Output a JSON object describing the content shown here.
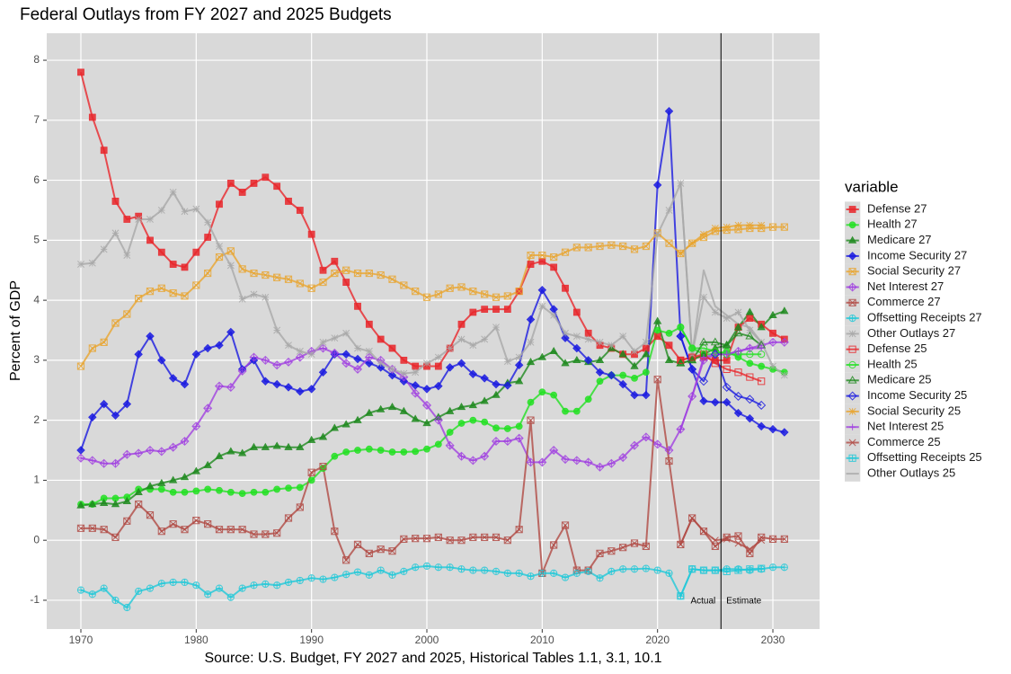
{
  "chart_data": {
    "type": "line",
    "title": "Federal Outlays from FY 2027 and 2025 Budgets",
    "x_label": "Source: U.S. Budget, FY 2027 and 2025, Historical Tables 1.1, 3.1, 10.1",
    "y_label": "Percent of GDP",
    "legend_title": "variable",
    "legend_position": "right",
    "grid": true,
    "xlim": [
      1967.04,
      2034.05
    ],
    "ylim": [
      -1.48,
      8.45
    ],
    "xticks": [
      1970,
      1980,
      1990,
      2000,
      2010,
      2020,
      2030
    ],
    "yticks": [
      -1,
      0,
      1,
      2,
      3,
      4,
      5,
      6,
      7,
      8
    ],
    "vline": 2025.5,
    "annotations": [
      "Actual",
      "Estimate"
    ],
    "x": [
      1970,
      1971,
      1972,
      1973,
      1974,
      1975,
      1976,
      1977,
      1978,
      1979,
      1980,
      1981,
      1982,
      1983,
      1984,
      1985,
      1986,
      1987,
      1988,
      1989,
      1990,
      1991,
      1992,
      1993,
      1994,
      1995,
      1996,
      1997,
      1998,
      1999,
      2000,
      2001,
      2002,
      2003,
      2004,
      2005,
      2006,
      2007,
      2008,
      2009,
      2010,
      2011,
      2012,
      2013,
      2014,
      2015,
      2016,
      2017,
      2018,
      2019,
      2020,
      2021,
      2022,
      2023,
      2024,
      2025,
      2026,
      2027,
      2028,
      2029,
      2030,
      2031
    ],
    "series": [
      {
        "name": "Defense 27",
        "color": "#e8262a",
        "shape": "square",
        "values": [
          7.8,
          7.05,
          6.5,
          5.65,
          5.35,
          5.4,
          5.0,
          4.8,
          4.6,
          4.55,
          4.8,
          5.05,
          5.6,
          5.95,
          5.8,
          5.95,
          6.05,
          5.9,
          5.65,
          5.5,
          5.1,
          4.5,
          4.65,
          4.3,
          3.9,
          3.6,
          3.35,
          3.2,
          3.0,
          2.9,
          2.9,
          2.9,
          3.2,
          3.6,
          3.8,
          3.85,
          3.85,
          3.85,
          4.15,
          4.6,
          4.65,
          4.55,
          4.2,
          3.8,
          3.45,
          3.25,
          3.2,
          3.1,
          3.1,
          3.2,
          3.4,
          3.25,
          3.0,
          3.05,
          3.05,
          3.0,
          3.0,
          3.55,
          3.7,
          3.6,
          3.45,
          3.35
        ]
      },
      {
        "name": "Health 27",
        "color": "#22e022",
        "shape": "circle",
        "values": [
          0.6,
          0.6,
          0.7,
          0.7,
          0.72,
          0.85,
          0.85,
          0.85,
          0.8,
          0.8,
          0.82,
          0.85,
          0.83,
          0.8,
          0.78,
          0.8,
          0.8,
          0.85,
          0.87,
          0.88,
          1.0,
          1.2,
          1.4,
          1.47,
          1.5,
          1.52,
          1.5,
          1.47,
          1.47,
          1.48,
          1.52,
          1.6,
          1.8,
          1.95,
          2.0,
          1.97,
          1.87,
          1.86,
          1.9,
          2.3,
          2.47,
          2.42,
          2.15,
          2.15,
          2.35,
          2.65,
          2.75,
          2.75,
          2.7,
          2.8,
          3.5,
          3.45,
          3.55,
          3.2,
          3.1,
          3.1,
          3.15,
          3.05,
          2.95,
          2.9,
          2.85,
          2.8
        ]
      },
      {
        "name": "Medicare 27",
        "color": "#1f8a1f",
        "shape": "triangle",
        "values": [
          0.58,
          0.6,
          0.62,
          0.6,
          0.65,
          0.8,
          0.9,
          0.95,
          1.0,
          1.05,
          1.15,
          1.25,
          1.4,
          1.48,
          1.45,
          1.55,
          1.55,
          1.57,
          1.55,
          1.55,
          1.67,
          1.72,
          1.87,
          1.93,
          2.0,
          2.12,
          2.18,
          2.22,
          2.15,
          2.02,
          1.95,
          2.05,
          2.15,
          2.22,
          2.25,
          2.32,
          2.42,
          2.62,
          2.65,
          2.97,
          3.05,
          3.15,
          2.95,
          3.0,
          2.97,
          3.0,
          3.2,
          3.1,
          2.9,
          3.1,
          3.65,
          3.0,
          2.95,
          3.0,
          3.1,
          3.2,
          3.25,
          3.55,
          3.8,
          3.55,
          3.75,
          3.82
        ]
      },
      {
        "name": "Income Security 27",
        "color": "#1a1ae0",
        "shape": "diamond",
        "values": [
          1.5,
          2.05,
          2.27,
          2.08,
          2.27,
          3.1,
          3.4,
          3.0,
          2.7,
          2.6,
          3.1,
          3.2,
          3.25,
          3.47,
          2.85,
          3.0,
          2.65,
          2.6,
          2.55,
          2.48,
          2.52,
          2.8,
          3.1,
          3.1,
          3.02,
          2.95,
          2.88,
          2.75,
          2.65,
          2.58,
          2.52,
          2.57,
          2.88,
          2.95,
          2.77,
          2.7,
          2.6,
          2.58,
          2.92,
          3.68,
          4.17,
          3.85,
          3.37,
          3.2,
          3.0,
          2.8,
          2.75,
          2.6,
          2.42,
          2.42,
          5.92,
          7.15,
          3.4,
          2.85,
          2.32,
          2.3,
          2.3,
          2.12,
          2.03,
          1.9,
          1.85,
          1.8
        ]
      },
      {
        "name": "Social Security 27",
        "color": "#e8a530",
        "shape": "square-x",
        "values": [
          2.9,
          3.2,
          3.3,
          3.62,
          3.77,
          4.03,
          4.15,
          4.2,
          4.12,
          4.07,
          4.25,
          4.45,
          4.72,
          4.82,
          4.52,
          4.45,
          4.42,
          4.38,
          4.35,
          4.28,
          4.2,
          4.3,
          4.45,
          4.5,
          4.45,
          4.45,
          4.42,
          4.35,
          4.25,
          4.15,
          4.05,
          4.1,
          4.2,
          4.22,
          4.15,
          4.1,
          4.05,
          4.07,
          4.15,
          4.75,
          4.75,
          4.72,
          4.8,
          4.88,
          4.88,
          4.9,
          4.92,
          4.9,
          4.85,
          4.9,
          5.12,
          4.95,
          4.78,
          4.95,
          5.05,
          5.15,
          5.17,
          5.18,
          5.2,
          5.2,
          5.22,
          5.22
        ]
      },
      {
        "name": "Net Interest 27",
        "color": "#a040e0",
        "shape": "diamond-plus",
        "values": [
          1.37,
          1.33,
          1.28,
          1.28,
          1.43,
          1.45,
          1.5,
          1.48,
          1.55,
          1.65,
          1.9,
          2.2,
          2.57,
          2.55,
          2.82,
          3.05,
          3.0,
          2.92,
          2.97,
          3.05,
          3.15,
          3.2,
          3.12,
          2.95,
          2.85,
          3.05,
          3.0,
          2.85,
          2.72,
          2.45,
          2.25,
          2.0,
          1.58,
          1.4,
          1.33,
          1.4,
          1.65,
          1.65,
          1.7,
          1.3,
          1.3,
          1.5,
          1.35,
          1.33,
          1.3,
          1.22,
          1.28,
          1.38,
          1.58,
          1.72,
          1.6,
          1.5,
          1.85,
          2.4,
          3.0,
          3.1,
          3.1,
          3.15,
          3.2,
          3.25,
          3.3,
          3.3
        ]
      },
      {
        "name": "Commerce 27",
        "color": "#b04a44",
        "shape": "square-x",
        "values": [
          0.2,
          0.2,
          0.18,
          0.05,
          0.32,
          0.6,
          0.42,
          0.15,
          0.27,
          0.18,
          0.33,
          0.27,
          0.18,
          0.18,
          0.18,
          0.1,
          0.1,
          0.12,
          0.37,
          0.55,
          1.13,
          1.23,
          0.15,
          -0.33,
          -0.07,
          -0.22,
          -0.15,
          -0.18,
          0.02,
          0.03,
          0.03,
          0.05,
          0.0,
          0.0,
          0.05,
          0.05,
          0.05,
          0.0,
          0.18,
          2.0,
          -0.55,
          -0.08,
          0.25,
          -0.5,
          -0.5,
          -0.22,
          -0.18,
          -0.12,
          -0.05,
          -0.1,
          2.68,
          1.32,
          -0.07,
          0.37,
          0.15,
          -0.1,
          0.05,
          0.07,
          -0.22,
          0.05,
          0.02,
          0.02
        ]
      },
      {
        "name": "Offsetting Receipts 27",
        "color": "#20c8d8",
        "shape": "circle-plus",
        "values": [
          -0.83,
          -0.9,
          -0.8,
          -1.0,
          -1.12,
          -0.85,
          -0.8,
          -0.72,
          -0.7,
          -0.7,
          -0.75,
          -0.9,
          -0.8,
          -0.95,
          -0.8,
          -0.75,
          -0.73,
          -0.75,
          -0.7,
          -0.67,
          -0.63,
          -0.65,
          -0.62,
          -0.57,
          -0.53,
          -0.58,
          -0.5,
          -0.58,
          -0.52,
          -0.45,
          -0.43,
          -0.45,
          -0.45,
          -0.48,
          -0.5,
          -0.5,
          -0.52,
          -0.55,
          -0.55,
          -0.6,
          -0.55,
          -0.55,
          -0.62,
          -0.55,
          -0.52,
          -0.63,
          -0.52,
          -0.48,
          -0.48,
          -0.47,
          -0.5,
          -0.55,
          -0.93,
          -0.48,
          -0.5,
          -0.5,
          -0.48,
          -0.48,
          -0.5,
          -0.48,
          -0.45,
          -0.45
        ]
      },
      {
        "name": "Other Outlays 27",
        "color": "#a8a8a8",
        "shape": "asterisk",
        "values": [
          4.6,
          4.62,
          4.85,
          5.12,
          4.75,
          5.35,
          5.35,
          5.5,
          5.8,
          5.48,
          5.52,
          5.3,
          4.9,
          4.58,
          4.02,
          4.1,
          4.05,
          3.5,
          3.25,
          3.15,
          3.1,
          3.3,
          3.37,
          3.45,
          3.2,
          3.15,
          2.95,
          2.85,
          2.78,
          2.8,
          2.95,
          3.05,
          3.2,
          3.35,
          3.25,
          3.35,
          3.55,
          2.98,
          3.05,
          3.3,
          3.9,
          3.75,
          3.45,
          3.4,
          3.35,
          3.3,
          3.25,
          3.4,
          3.15,
          3.3,
          5.1,
          5.5,
          5.95,
          3.1,
          4.05,
          3.8,
          3.7,
          3.8,
          3.5,
          3.3,
          2.9,
          2.75
        ]
      },
      {
        "name": "Defense 25",
        "color": "#e8262a",
        "shape": "open-square",
        "x": [
          2022,
          2023,
          2024,
          2025,
          2026,
          2027,
          2028,
          2029
        ],
        "values": [
          3.0,
          3.05,
          3.1,
          2.95,
          2.85,
          2.8,
          2.72,
          2.65
        ]
      },
      {
        "name": "Health 25",
        "color": "#22e022",
        "shape": "open-circle",
        "x": [
          2022,
          2023,
          2024,
          2025,
          2026,
          2027,
          2028,
          2029
        ],
        "values": [
          3.55,
          3.2,
          3.2,
          3.15,
          3.1,
          3.1,
          3.1,
          3.1
        ]
      },
      {
        "name": "Medicare 25",
        "color": "#1f8a1f",
        "shape": "open-triangle",
        "x": [
          2022,
          2023,
          2024,
          2025,
          2026,
          2027,
          2028,
          2029
        ],
        "values": [
          2.95,
          3.0,
          3.3,
          3.3,
          3.25,
          3.45,
          3.4,
          3.25
        ]
      },
      {
        "name": "Income Security 25",
        "color": "#1a1ae0",
        "shape": "open-diamond",
        "x": [
          2022,
          2023,
          2024,
          2025,
          2026,
          2027,
          2028,
          2029
        ],
        "values": [
          3.4,
          2.85,
          2.65,
          3.1,
          2.55,
          2.4,
          2.35,
          2.25
        ]
      },
      {
        "name": "Social Security 25",
        "color": "#e8a530",
        "shape": "asterisk",
        "x": [
          2022,
          2023,
          2024,
          2025,
          2026,
          2027,
          2028,
          2029
        ],
        "values": [
          4.78,
          4.95,
          5.1,
          5.2,
          5.22,
          5.25,
          5.25,
          5.25
        ]
      },
      {
        "name": "Net Interest 25",
        "color": "#a040e0",
        "shape": "plus",
        "x": [
          2022,
          2023,
          2024,
          2025,
          2026,
          2027,
          2028,
          2029
        ],
        "values": [
          1.85,
          2.4,
          3.05,
          3.1,
          3.1,
          3.15,
          3.2,
          3.2
        ]
      },
      {
        "name": "Commerce 25",
        "color": "#b04a44",
        "shape": "x",
        "x": [
          2022,
          2023,
          2024,
          2025,
          2026,
          2027,
          2028,
          2029
        ],
        "values": [
          -0.07,
          0.37,
          0.15,
          0.0,
          0.02,
          -0.05,
          -0.15,
          0.0
        ]
      },
      {
        "name": "Offsetting Receipts 25",
        "color": "#20c8d8",
        "shape": "square-plus",
        "x": [
          2022,
          2023,
          2024,
          2025,
          2026,
          2027,
          2028,
          2029
        ],
        "values": [
          -0.93,
          -0.48,
          -0.5,
          -0.5,
          -0.52,
          -0.5,
          -0.48,
          -0.47
        ]
      },
      {
        "name": "Other Outlays 25",
        "color": "#a8a8a8",
        "shape": "none",
        "x": [
          2022,
          2023,
          2024,
          2025,
          2026,
          2027,
          2028,
          2029
        ],
        "values": [
          5.95,
          3.1,
          4.5,
          3.9,
          3.75,
          3.6,
          3.55,
          3.3
        ]
      }
    ]
  }
}
